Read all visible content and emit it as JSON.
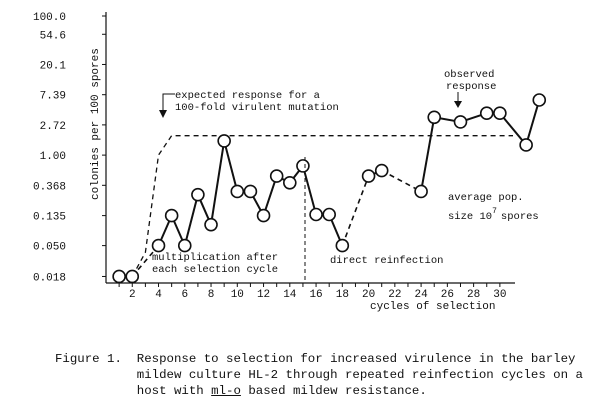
{
  "chart_data": {
    "type": "line",
    "title": "",
    "xlabel": "cycles of selection",
    "ylabel": "colonies per 100 spores",
    "y_scale": "log",
    "y_ticks": [
      "100.0",
      "54.6",
      "20.1",
      "7.39",
      "2.72",
      "1.00",
      "0.368",
      "0.135",
      "0.050",
      "0.018"
    ],
    "y_tick_values": [
      100.0,
      54.6,
      20.1,
      7.39,
      2.72,
      1.0,
      0.368,
      0.135,
      0.05,
      0.018
    ],
    "x_ticks": [
      2,
      4,
      6,
      8,
      10,
      12,
      14,
      16,
      18,
      20,
      22,
      24,
      26,
      28,
      30
    ],
    "xlim": [
      0,
      31
    ],
    "ylim": [
      0.0145,
      100.0
    ],
    "series": [
      {
        "name": "observed response",
        "x": [
          1,
          2,
          4,
          5,
          6,
          7,
          8,
          9,
          10,
          11,
          12,
          13,
          14,
          15,
          16,
          17,
          18,
          20,
          21,
          24,
          25,
          27,
          29,
          30,
          32,
          33
        ],
        "y": [
          0.018,
          0.018,
          0.05,
          0.135,
          0.05,
          0.27,
          0.1,
          1.6,
          0.3,
          0.3,
          0.135,
          0.5,
          0.4,
          0.7,
          0.14,
          0.14,
          0.05,
          0.5,
          0.6,
          0.3,
          3.5,
          3.0,
          4.0,
          4.0,
          1.4,
          6.2
        ],
        "dashed_segments_after_index": [
          1,
          16,
          18
        ]
      },
      {
        "name": "expected response for a 100-fold virulent mutation",
        "style": "dashed",
        "x": [
          2,
          3,
          4,
          5,
          31
        ],
        "y": [
          0.018,
          0.04,
          1.0,
          1.9,
          1.9
        ]
      }
    ],
    "annotations": {
      "expected_line1": "expected response for a",
      "expected_line2": "100-fold virulent mutation",
      "observed_line1": "observed",
      "observed_line2": "response",
      "pop_line1": "average pop.",
      "pop_line2a": "size 10",
      "pop_line2_sup": "7",
      "pop_line2b": "spores",
      "mult_line1": "multiplication after",
      "mult_line2": "each selection cycle",
      "direct": "direct reinfection"
    },
    "divider_x": 15.3
  },
  "caption": {
    "line1": "Figure 1.  Response to selection for increased virulence in the barley",
    "line2": "           mildew culture HL-2 through repeated reinfection cycles on a",
    "line3a": "           host with ",
    "line3_ul": "ml-o",
    "line3b": " based mildew resistance."
  }
}
